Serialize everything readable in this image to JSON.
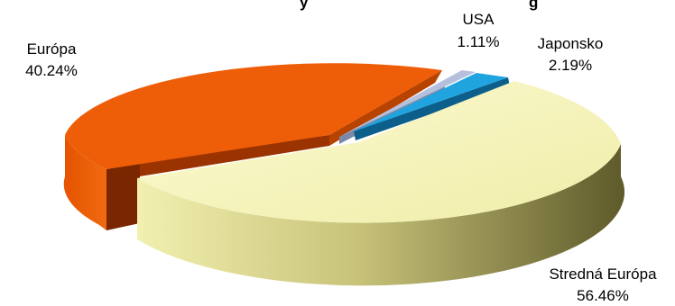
{
  "chart_data": {
    "type": "pie",
    "title_fragment": "y",
    "title_fragment_right": "g",
    "slices": [
      {
        "label": "Európa",
        "value": 40.24,
        "value_text": "40.24%",
        "color": "#E85A05",
        "side_color": "#8B2A00"
      },
      {
        "label": "USA",
        "value": 1.11,
        "value_text": "1.11%",
        "color": "#A9B6D6",
        "side_color": "#6E7A98"
      },
      {
        "label": "Japonsko",
        "value": 2.19,
        "value_text": "2.19%",
        "color": "#1EA0DC",
        "side_color": "#0B5F8A"
      },
      {
        "label": "Stredná Európa",
        "value": 56.46,
        "value_text": "56.46%",
        "color": "#F5F3B4",
        "side_color": "#6E6A32"
      }
    ],
    "exploded": true,
    "style": "3d"
  }
}
